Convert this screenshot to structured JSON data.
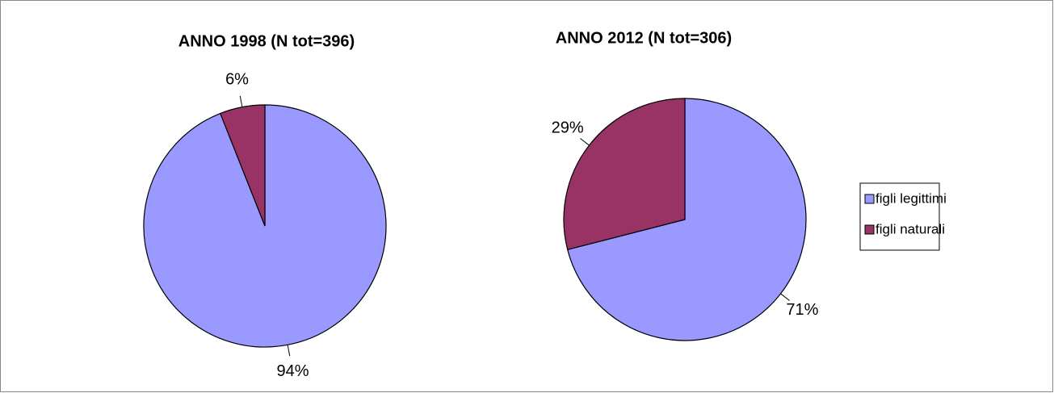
{
  "chart_data": [
    {
      "type": "pie",
      "title": "ANNO 1998 (N tot=396)",
      "categories": [
        "figli legittimi",
        "figli naturali"
      ],
      "values": [
        94,
        6
      ],
      "value_labels": [
        "94%",
        "6%"
      ],
      "colors": [
        "#9999ff",
        "#993366"
      ]
    },
    {
      "type": "pie",
      "title": "ANNO 2012 (N tot=306)",
      "categories": [
        "figli legittimi",
        "figli naturali"
      ],
      "values": [
        71,
        29
      ],
      "value_labels": [
        "71%",
        "29%"
      ],
      "colors": [
        "#9999ff",
        "#993366"
      ],
      "legend": "right"
    }
  ]
}
